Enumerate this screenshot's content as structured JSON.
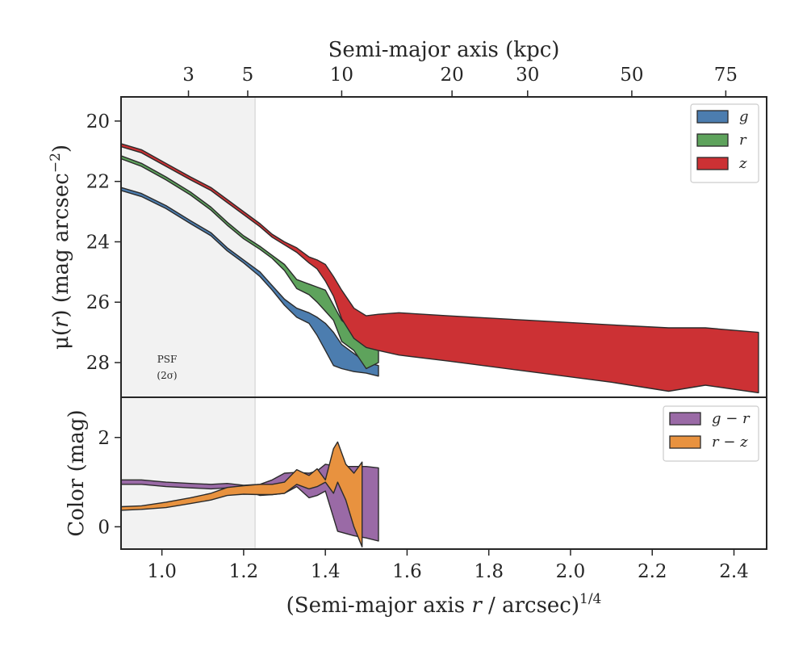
{
  "chart_data": [
    {
      "type": "area",
      "name": "surface-brightness-profile",
      "xlabel_bottom": "(Semi-major axis r / arcsec)^1/4",
      "xlabel_top": "Semi-major axis (kpc)",
      "ylabel": "μ(r) (mag arcsec^-2)",
      "xlim": [
        0.9,
        2.48
      ],
      "ylim": [
        29.15,
        19.2
      ],
      "y_inverted": true,
      "yticks": [
        20,
        22,
        24,
        26,
        28
      ],
      "top_ticks": [
        {
          "label": "3",
          "x": 1.065
        },
        {
          "label": "5",
          "x": 1.21
        },
        {
          "label": "10",
          "x": 1.44
        },
        {
          "label": "20",
          "x": 1.71
        },
        {
          "label": "30",
          "x": 1.895
        },
        {
          "label": "50",
          "x": 2.15
        },
        {
          "label": "75",
          "x": 2.38
        }
      ],
      "psf_region": {
        "x_max": 1.228,
        "label_line1": "PSF",
        "label_line2": "(2σ)"
      },
      "legend": {
        "position": "top-right",
        "entries": [
          "g",
          "r",
          "z"
        ]
      },
      "series": [
        {
          "name": "g",
          "color": "#4c7daf",
          "x": [
            0.9,
            0.95,
            1.01,
            1.07,
            1.12,
            1.16,
            1.2,
            1.24,
            1.27,
            1.3,
            1.33,
            1.36,
            1.38,
            1.4,
            1.42,
            1.44,
            1.47,
            1.5,
            1.53
          ],
          "y_upper": [
            22.2,
            22.4,
            22.8,
            23.3,
            23.7,
            24.2,
            24.6,
            25.0,
            25.45,
            25.9,
            26.2,
            26.35,
            26.5,
            26.7,
            27.0,
            27.4,
            27.7,
            28.0,
            28.1
          ],
          "y_lower": [
            22.3,
            22.5,
            22.9,
            23.4,
            23.8,
            24.3,
            24.7,
            25.15,
            25.6,
            26.1,
            26.5,
            26.7,
            27.1,
            27.6,
            28.1,
            28.2,
            28.3,
            28.35,
            28.45
          ]
        },
        {
          "name": "r",
          "color": "#5ea35c",
          "x": [
            0.9,
            0.95,
            1.01,
            1.07,
            1.12,
            1.16,
            1.2,
            1.24,
            1.27,
            1.3,
            1.33,
            1.36,
            1.38,
            1.4,
            1.42,
            1.44,
            1.47,
            1.5,
            1.53
          ],
          "y_upper": [
            21.15,
            21.4,
            21.85,
            22.35,
            22.85,
            23.35,
            23.8,
            24.15,
            24.45,
            24.75,
            25.25,
            25.4,
            25.5,
            25.6,
            26.1,
            26.6,
            26.95,
            27.3,
            27.35
          ],
          "y_lower": [
            21.25,
            21.5,
            21.95,
            22.45,
            22.95,
            23.45,
            23.9,
            24.25,
            24.55,
            24.95,
            25.55,
            25.75,
            26.0,
            26.3,
            26.6,
            27.3,
            27.6,
            28.2,
            28.0
          ]
        },
        {
          "name": "z",
          "color": "#cc3134",
          "x": [
            0.9,
            0.95,
            1.01,
            1.07,
            1.12,
            1.16,
            1.2,
            1.24,
            1.27,
            1.3,
            1.33,
            1.36,
            1.38,
            1.4,
            1.42,
            1.44,
            1.47,
            1.5,
            1.53,
            1.58,
            1.7,
            1.9,
            2.1,
            2.24,
            2.33,
            2.46
          ],
          "y_upper": [
            20.75,
            20.95,
            21.4,
            21.85,
            22.2,
            22.6,
            23.0,
            23.4,
            23.75,
            24.0,
            24.2,
            24.5,
            24.6,
            24.75,
            25.15,
            25.6,
            26.2,
            26.45,
            26.4,
            26.35,
            26.45,
            26.6,
            26.75,
            26.85,
            26.85,
            27.0
          ],
          "y_lower": [
            20.85,
            21.05,
            21.5,
            21.95,
            22.3,
            22.7,
            23.1,
            23.5,
            23.85,
            24.1,
            24.35,
            24.7,
            24.9,
            25.3,
            25.8,
            26.55,
            27.2,
            27.5,
            27.6,
            27.75,
            27.95,
            28.3,
            28.65,
            28.95,
            28.75,
            29.0
          ]
        }
      ]
    },
    {
      "type": "area",
      "name": "color-profile",
      "ylabel": "Color (mag)",
      "xlim": [
        0.9,
        2.48
      ],
      "ylim": [
        -0.5,
        2.9
      ],
      "yticks": [
        0,
        2
      ],
      "xticks": [
        1.0,
        1.2,
        1.4,
        1.6,
        1.8,
        2.0,
        2.2,
        2.4
      ],
      "xtick_labels": [
        "1.0",
        "1.2",
        "1.4",
        "1.6",
        "1.8",
        "2.0",
        "2.2",
        "2.4"
      ],
      "legend": {
        "position": "top-right",
        "entries": [
          "g − r",
          "r − z"
        ]
      },
      "series": [
        {
          "name": "g − r",
          "color": "#9a6aa6",
          "x": [
            0.9,
            0.95,
            1.01,
            1.07,
            1.12,
            1.16,
            1.2,
            1.24,
            1.27,
            1.3,
            1.33,
            1.36,
            1.38,
            1.4,
            1.43,
            1.47,
            1.5,
            1.53
          ],
          "y_upper": [
            1.05,
            1.05,
            1.0,
            0.97,
            0.95,
            0.97,
            0.93,
            0.95,
            1.05,
            1.2,
            1.22,
            1.2,
            1.25,
            1.4,
            1.35,
            1.35,
            1.35,
            1.32
          ],
          "y_lower": [
            0.95,
            0.95,
            0.9,
            0.87,
            0.85,
            0.87,
            0.82,
            0.7,
            0.72,
            0.75,
            0.9,
            0.65,
            0.7,
            0.8,
            -0.1,
            -0.2,
            -0.25,
            -0.32
          ]
        },
        {
          "name": "r − z",
          "color": "#e8923f",
          "x": [
            0.9,
            0.95,
            1.01,
            1.07,
            1.12,
            1.16,
            1.2,
            1.24,
            1.27,
            1.3,
            1.33,
            1.36,
            1.38,
            1.4,
            1.42,
            1.43,
            1.45,
            1.47,
            1.49
          ],
          "y_upper": [
            0.45,
            0.47,
            0.55,
            0.65,
            0.75,
            0.88,
            0.92,
            0.95,
            0.95,
            1.0,
            1.28,
            1.15,
            1.3,
            1.05,
            1.75,
            1.9,
            1.4,
            1.2,
            1.45
          ],
          "y_lower": [
            0.37,
            0.39,
            0.43,
            0.52,
            0.6,
            0.7,
            0.73,
            0.72,
            0.72,
            0.75,
            0.95,
            0.85,
            0.9,
            1.0,
            0.75,
            1.0,
            0.6,
            0.0,
            -0.45
          ]
        }
      ]
    }
  ]
}
